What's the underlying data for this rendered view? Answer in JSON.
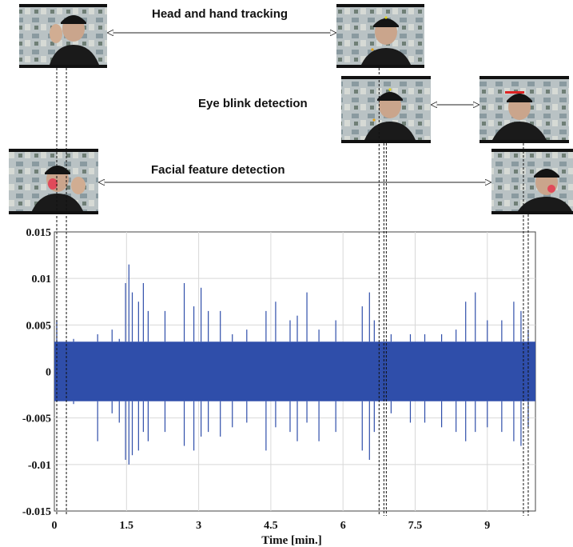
{
  "annotations": [
    {
      "label": "Head and hand tracking"
    },
    {
      "label": "Eye blink detection"
    },
    {
      "label": "Facial feature detection"
    }
  ],
  "chart_data": {
    "type": "line",
    "title": "",
    "xlabel": "Time [min.]",
    "ylabel": "",
    "xlim": [
      0,
      10.0
    ],
    "ylim": [
      -0.015,
      0.015
    ],
    "x_ticks": [
      0,
      1.5,
      3,
      4.5,
      6,
      7.5,
      9
    ],
    "x_tick_labels": [
      "0",
      "1.5",
      "3",
      "4.5",
      "6",
      "7.5",
      "9"
    ],
    "y_ticks": [
      0.015,
      0.01,
      0.005,
      0,
      -0.005,
      -0.01,
      -0.015
    ],
    "y_tick_labels": [
      "0.015",
      "0.01",
      "0.005",
      "0",
      "-0.005",
      "-0.01",
      "-0.015"
    ],
    "grid": true,
    "series": [
      {
        "color": "#2f4eaa",
        "baseline_band": [
          -0.0032,
          0.0032
        ],
        "t": [
          0.05,
          0.4,
          0.9,
          1.2,
          1.35,
          1.48,
          1.55,
          1.62,
          1.75,
          1.85,
          1.95,
          2.3,
          2.7,
          2.9,
          3.05,
          3.2,
          3.45,
          3.7,
          4.0,
          4.4,
          4.6,
          4.9,
          5.05,
          5.25,
          5.5,
          5.85,
          6.4,
          6.55,
          6.65,
          7.0,
          7.4,
          7.7,
          8.05,
          8.35,
          8.55,
          8.75,
          9.0,
          9.3,
          9.55,
          9.7,
          9.85
        ],
        "peak": [
          0.0055,
          0.0035,
          0.004,
          0.0045,
          0.0035,
          0.0095,
          0.0115,
          0.0085,
          0.0075,
          0.0095,
          0.0065,
          0.0065,
          0.0095,
          0.007,
          0.009,
          0.0065,
          0.0065,
          0.004,
          0.0045,
          0.0065,
          0.0075,
          0.0055,
          0.006,
          0.0085,
          0.0045,
          0.0055,
          0.007,
          0.0085,
          0.0055,
          0.004,
          0.004,
          0.004,
          0.004,
          0.0045,
          0.0075,
          0.0085,
          0.0055,
          0.0055,
          0.0075,
          0.0065,
          0.0045
        ],
        "trough": [
          -0.003,
          -0.0035,
          -0.0075,
          -0.0045,
          -0.0055,
          -0.0095,
          -0.01,
          -0.009,
          -0.0085,
          -0.0065,
          -0.0075,
          -0.0065,
          -0.008,
          -0.0085,
          -0.007,
          -0.0065,
          -0.007,
          -0.006,
          -0.0055,
          -0.0085,
          -0.006,
          -0.0065,
          -0.0075,
          -0.0055,
          -0.0075,
          -0.0065,
          -0.0085,
          -0.0095,
          -0.0065,
          -0.0045,
          -0.0055,
          -0.0055,
          -0.006,
          -0.0065,
          -0.0075,
          -0.0065,
          -0.006,
          -0.0065,
          -0.0075,
          -0.008,
          -0.006
        ]
      }
    ],
    "event_markers_min": [
      0.05,
      0.25,
      6.75,
      6.85,
      6.9,
      9.75,
      9.85
    ]
  }
}
